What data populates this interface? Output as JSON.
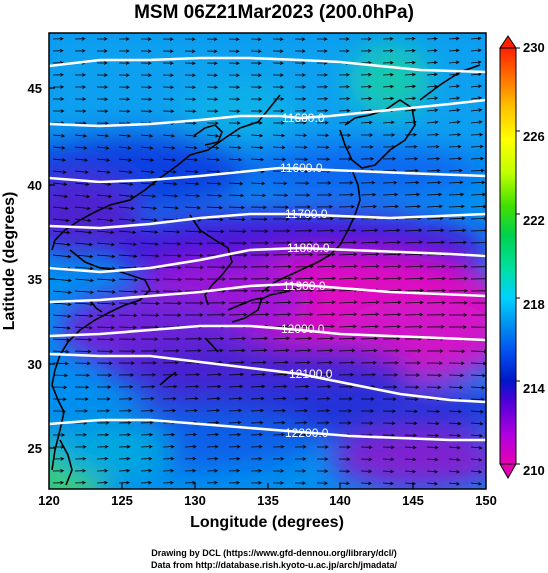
{
  "title": "MSM 06Z21Mar2023 (200.0hPa)",
  "xlabel": "Longitude (degrees)",
  "ylabel": "Latitude  (degrees)",
  "x_ticks": [
    "120",
    "125",
    "130",
    "135",
    "140",
    "145",
    "150"
  ],
  "y_ticks": [
    "25",
    "30",
    "35",
    "40",
    "45"
  ],
  "colorbar": {
    "min": 210,
    "max": 230,
    "ticks": [
      "210",
      "214",
      "218",
      "222",
      "226",
      "230"
    ],
    "colors": [
      "#e600b4",
      "#b000e0",
      "#5000d8",
      "#0018c8",
      "#0050f0",
      "#0096f0",
      "#00d2ff",
      "#00e0a0",
      "#00d050",
      "#40e000",
      "#c0ff00",
      "#ffff00",
      "#ffc000",
      "#ff7000",
      "#ff2000"
    ]
  },
  "contours": [
    {
      "label": "11600.0"
    },
    {
      "label": "11600.0"
    },
    {
      "label": "11700.0"
    },
    {
      "label": "11800.0"
    },
    {
      "label": "11900.0"
    },
    {
      "label": "12000.0"
    },
    {
      "label": "12100.0"
    },
    {
      "label": "12200.0"
    }
  ],
  "footer": {
    "line1": "Drawing by DCL (https://www.gfd-dennou.org/library/dcl/)",
    "line2": "Data from http://database.rish.kyoto-u.ac.jp/arch/jmadata/"
  },
  "chart_data": {
    "type": "heatmap",
    "title": "MSM 06Z21Mar2023 (200.0hPa)",
    "xlabel": "Longitude (degrees)",
    "ylabel": "Latitude  (degrees)",
    "xlim": [
      120,
      150
    ],
    "ylim": [
      22.4,
      47.6
    ],
    "color_range": [
      210,
      230
    ],
    "contour_values": [
      11600.0,
      11600.0,
      11700.0,
      11800.0,
      11900.0,
      12000.0,
      12100.0,
      12200.0
    ],
    "vectors": "westerly wind arrows"
  }
}
